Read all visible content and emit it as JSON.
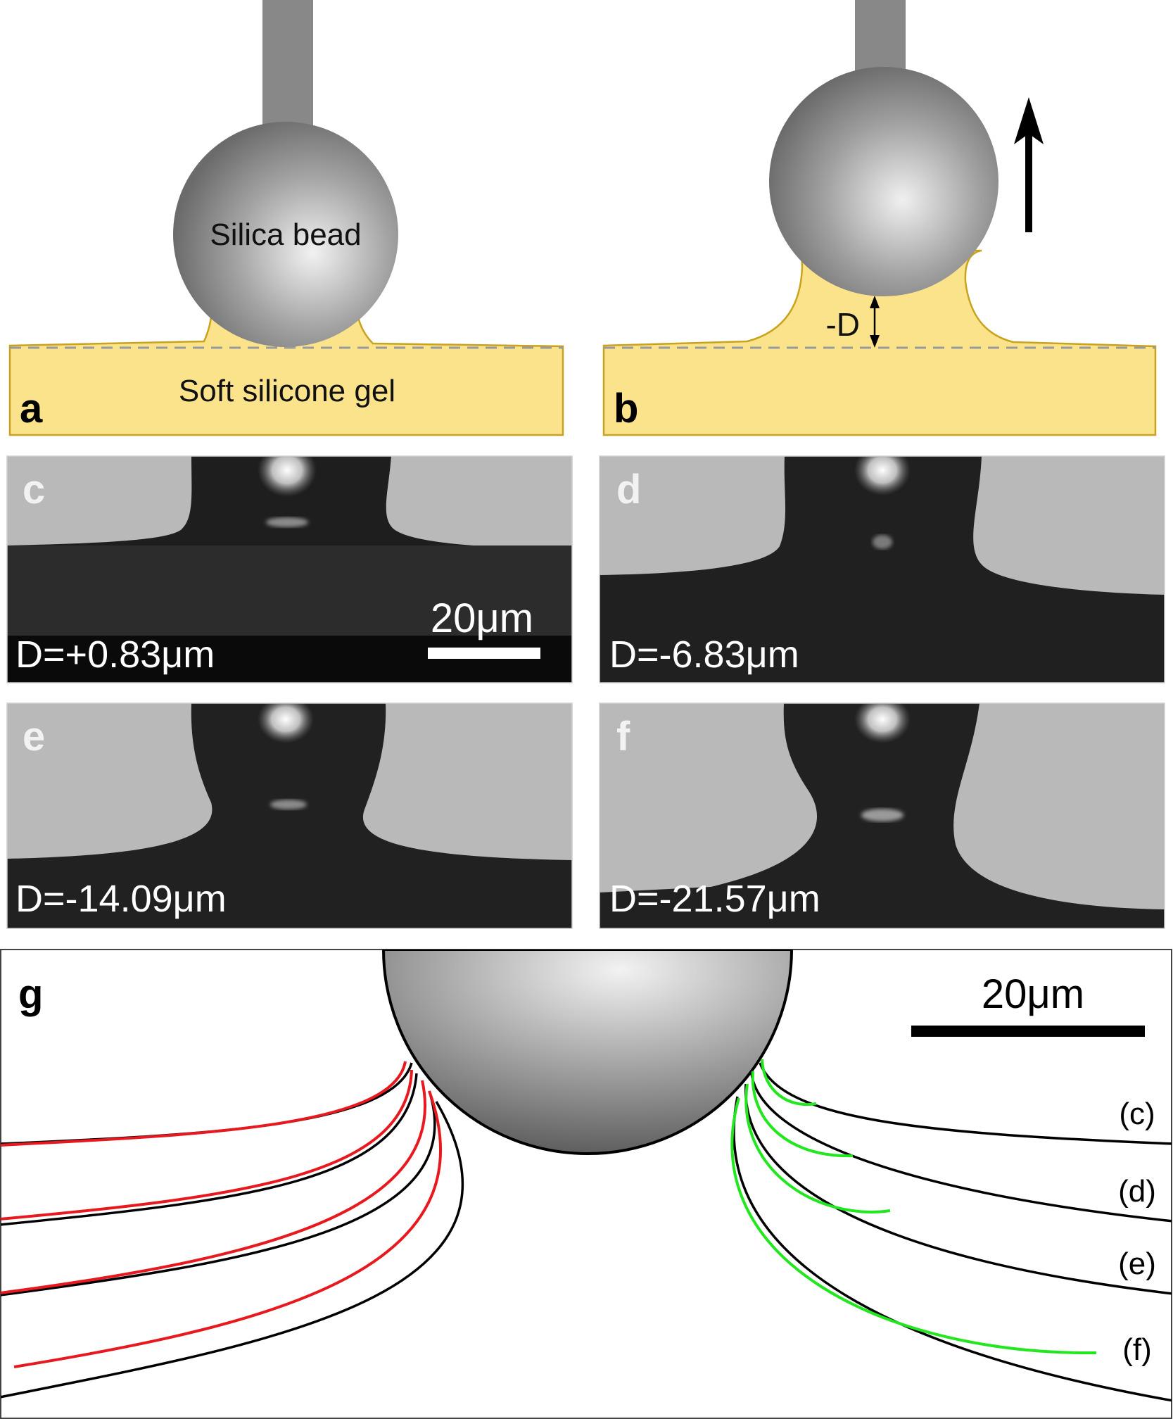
{
  "panels": {
    "a": {
      "letter": "a",
      "bead_label": "Silica bead",
      "gel_label": "Soft silicone gel"
    },
    "b": {
      "letter": "b",
      "depth_label": "-D"
    },
    "c": {
      "letter": "c",
      "caption": "D=+0.83μm",
      "scale_label": "20μm"
    },
    "d": {
      "letter": "d",
      "caption": "D=-6.83μm"
    },
    "e": {
      "letter": "e",
      "caption": "D=-14.09μm"
    },
    "f": {
      "letter": "f",
      "caption": "D=-21.57μm"
    },
    "g": {
      "letter": "g",
      "scale_label": "20μm",
      "curve_labels": [
        "(c)",
        "(d)",
        "(e)",
        "(f)"
      ]
    }
  },
  "colors": {
    "gel_fill": "#fbe38c",
    "gel_stroke": "#c9a21e",
    "bead_light": "#eeeeee",
    "bead_dark": "#6f6f6f",
    "rod": "#888888",
    "micrograph_light": "#b9b9b9",
    "micrograph_dark": "#1f1f1f",
    "fit_left": "#e8191e",
    "fit_right": "#22e61e",
    "profile": "#000000"
  }
}
